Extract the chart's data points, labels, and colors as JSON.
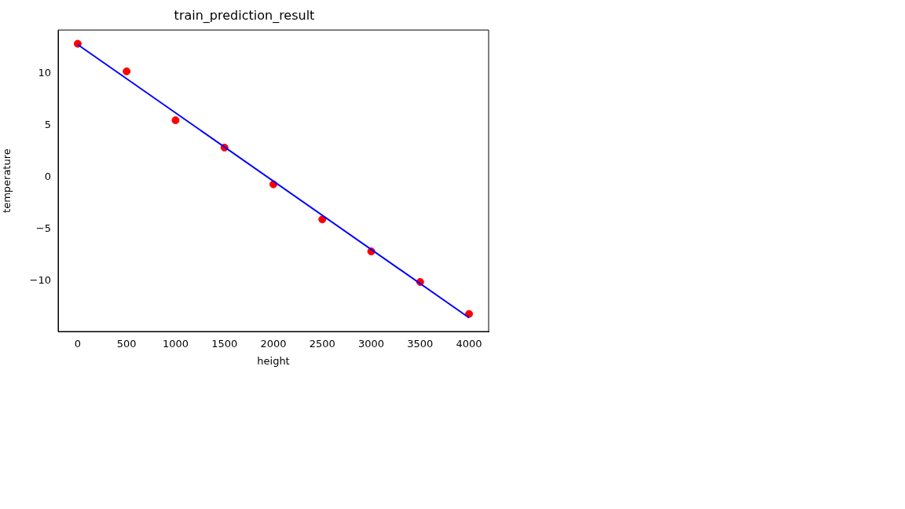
{
  "chart_data": {
    "type": "scatter",
    "title": "train_prediction_result",
    "xlabel": "height",
    "ylabel": "temperature",
    "xlim": [
      -200,
      4200
    ],
    "xticks": [
      0,
      500,
      1000,
      1500,
      2000,
      2500,
      3000,
      3500,
      4000
    ],
    "ylim": [
      -14.85,
      14.18
    ],
    "yticks": [
      {
        "value": -10,
        "label": "−10"
      },
      {
        "value": -5,
        "label": "−5"
      },
      0,
      5,
      10
    ],
    "grid": false,
    "legend": false,
    "series": [
      {
        "color": "#ff0000",
        "marker": "circle",
        "x": [
          0,
          500,
          1000,
          1500,
          2000,
          2500,
          3000,
          3500,
          4000
        ],
        "values": [
          12.86,
          10.2,
          5.49,
          2.86,
          -0.68,
          -4.06,
          -7.14,
          -10.08,
          -13.16
        ]
      },
      {
        "type": "line",
        "color": "#0000ff",
        "marker": "none",
        "line_style": "solid",
        "x": [
          0,
          4000
        ],
        "values": [
          12.78,
          -13.53
        ]
      }
    ]
  }
}
